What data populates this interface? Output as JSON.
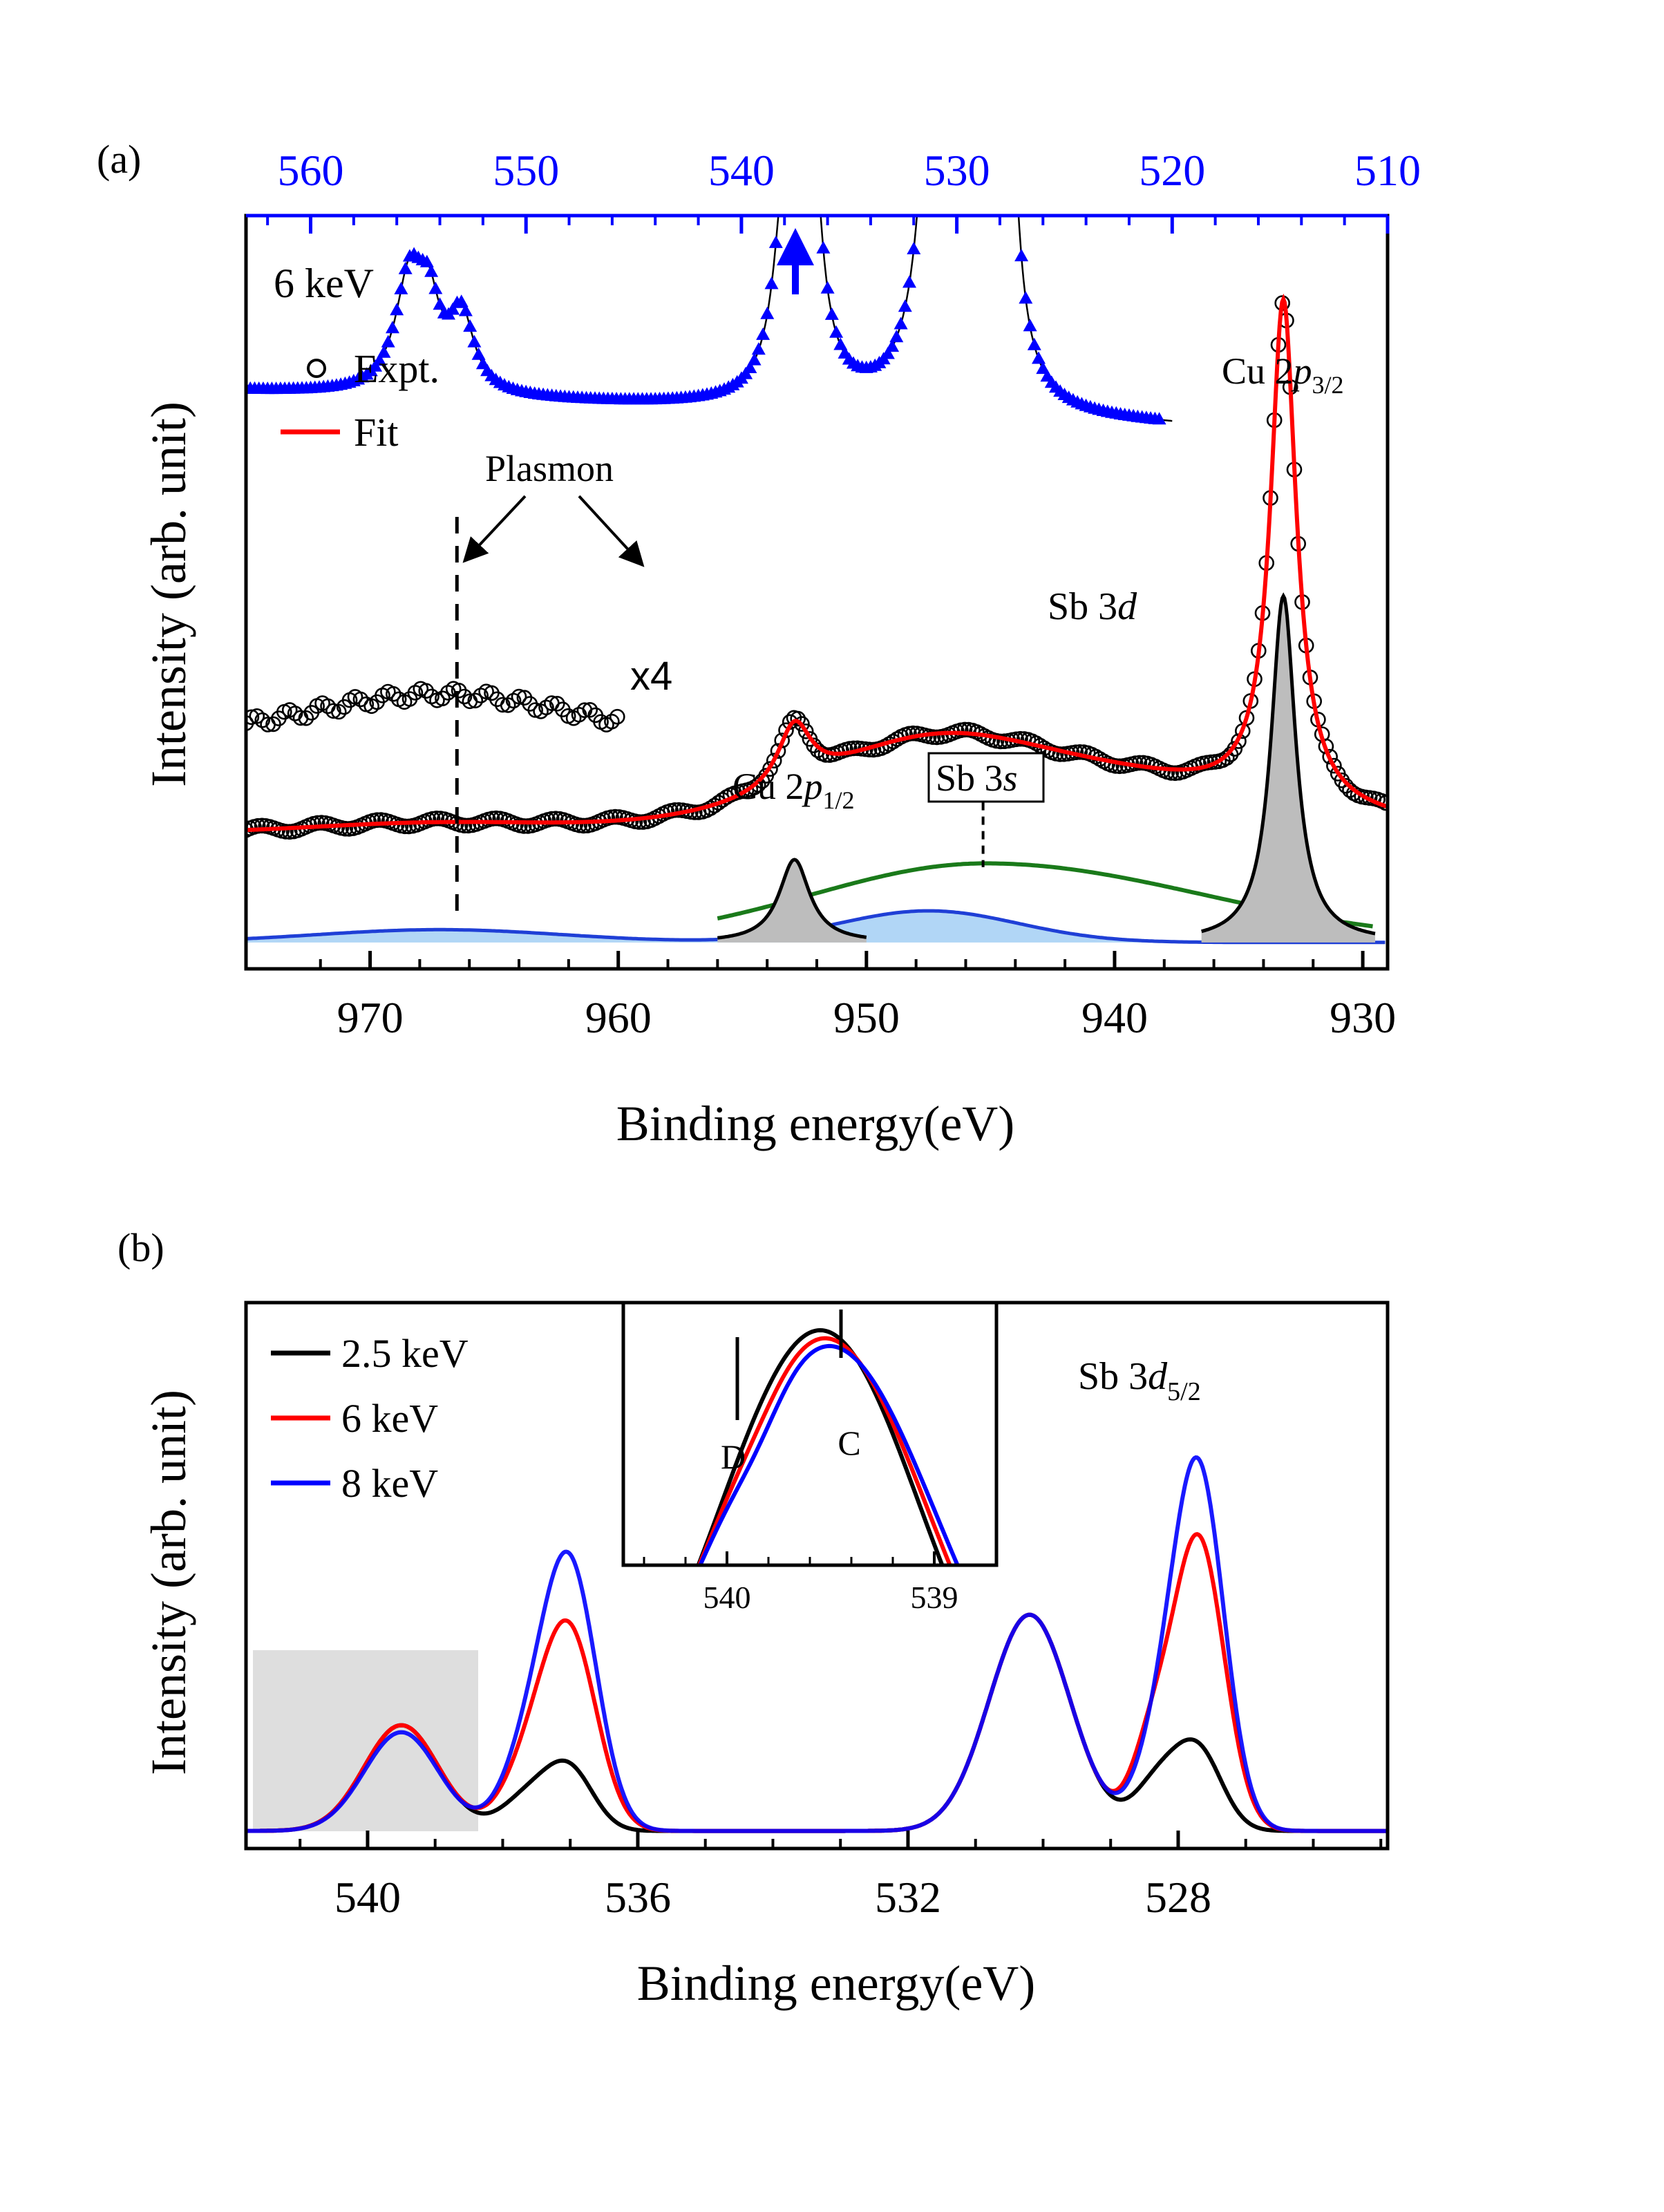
{
  "panel_labels": {
    "a": "(a)",
    "b": "(b)"
  },
  "colors": {
    "expt": "#000000",
    "fit": "#ff0000",
    "sb3d": "#0000ff",
    "sb3s": "#1a7a1a",
    "plasmon": "#1f3fd6",
    "plasmon_fill": "#a9d2f5",
    "cu_fill": "#bdbdbd",
    "e25": "#000000",
    "e6": "#ff0000",
    "e8": "#0000ff",
    "shade": "#dedede"
  },
  "chart_data": [
    {
      "id": "a",
      "type": "line",
      "title": "6 keV",
      "xlabel": "Binding energy(eV)",
      "ylabel": "Intensity (arb. unit)",
      "xlim": [
        975,
        929
      ],
      "x_ticks": [
        970,
        960,
        950,
        940,
        930
      ],
      "x_tick_labels": [
        "970",
        "960",
        "950",
        "940",
        "930"
      ],
      "top_xlim": [
        563,
        510
      ],
      "top_x_ticks": [
        560,
        550,
        540,
        530,
        520,
        510
      ],
      "top_x_tick_labels": [
        "560",
        "550",
        "540",
        "530",
        "520",
        "510"
      ],
      "ylim": [
        0,
        10
      ],
      "legend": [
        {
          "label": "Expt.",
          "marker": "circle"
        },
        {
          "label": "Fit",
          "marker": "line"
        }
      ],
      "annotations": {
        "plasmon": "Plasmon",
        "x4": "x4",
        "cu2p32": {
          "base": "Cu 2",
          "ital": "p",
          "sub": "3/2"
        },
        "cu2p12": {
          "base": "Cu 2",
          "ital": "p",
          "sub": "1/2"
        },
        "sb3s": {
          "base": "Sb 3",
          "ital": "s"
        },
        "sb3d": {
          "base": "Sb 3",
          "ital": "d"
        }
      },
      "series": {
        "sb3d_spectrum": {
          "name": "Sb 3d (top axis)",
          "baseline": 7.2,
          "slope": 0.018,
          "peaks": [
            [
              555.4,
              1.5,
              0.8
            ],
            [
              554.5,
              0.9,
              0.6
            ],
            [
              537.0,
              5.7,
              0.55
            ],
            [
              531.0,
              5.0,
              0.7
            ],
            [
              530.4,
              3.6,
              0.5
            ],
            [
              528.6,
              3.0,
              0.6
            ],
            [
              527.8,
              6.5,
              0.45
            ],
            [
              553.0,
              1.0,
              0.7
            ],
            [
              538.0,
              2.0,
              0.6
            ]
          ]
        },
        "cu2p_spectrum": {
          "name": "Cu 2p Expt./Fit",
          "baseline": 1.8,
          "x4_offset": 1.5,
          "x4_range": [
            975,
            960
          ]
        },
        "cu2p32_peak": {
          "center": 933.2,
          "amplitude": 4.6,
          "width": 0.6
        },
        "cu2p12_peak": {
          "center": 952.9,
          "amplitude": 1.1,
          "width": 0.75
        },
        "sb3s_peak": {
          "center": 945.2,
          "amplitude": 1.05,
          "width": 7.0
        },
        "plasmon_peaks": [
          {
            "center": 967.2,
            "amplitude": 0.17,
            "width": 5.0
          },
          {
            "center": 947.5,
            "amplitude": 0.42,
            "width": 3.6
          }
        ]
      }
    },
    {
      "id": "b",
      "type": "line",
      "title": "",
      "xlabel": "Binding energy(eV)",
      "ylabel": "Intensity (arb. unit)",
      "xlim": [
        541.8,
        524.9
      ],
      "x_ticks": [
        540,
        536,
        532,
        528
      ],
      "x_tick_labels": [
        "540",
        "536",
        "532",
        "528"
      ],
      "ylim": [
        0,
        10
      ],
      "annotation": {
        "base": "Sb 3",
        "ital": "d",
        "sub": "5/2"
      },
      "series": [
        {
          "name": "2.5 keV",
          "color": "#000000",
          "peaks": [
            [
              539.5,
              2.25,
              0.55
            ],
            [
              537.0,
              1.2,
              0.35
            ],
            [
              537.6,
              0.75,
              0.4
            ],
            [
              530.2,
              4.6,
              0.6
            ],
            [
              527.7,
              1.65,
              0.35
            ],
            [
              528.3,
              1.0,
              0.35
            ]
          ]
        },
        {
          "name": "6 keV",
          "color": "#ff0000",
          "peaks": [
            [
              539.5,
              2.25,
              0.55
            ],
            [
              537.0,
              4.0,
              0.4
            ],
            [
              537.6,
              1.3,
              0.4
            ],
            [
              530.2,
              4.6,
              0.6
            ],
            [
              527.7,
              6.2,
              0.38
            ],
            [
              528.4,
              1.6,
              0.3
            ]
          ]
        },
        {
          "name": "8 keV",
          "color": "#0000ff",
          "peaks": [
            [
              539.5,
              2.1,
              0.55
            ],
            [
              537.0,
              5.4,
              0.4
            ],
            [
              537.6,
              1.5,
              0.4
            ],
            [
              530.2,
              4.6,
              0.6
            ],
            [
              527.7,
              7.6,
              0.38
            ],
            [
              528.3,
              1.4,
              0.35
            ]
          ]
        }
      ],
      "inset": {
        "xlim": [
          540.5,
          538.7
        ],
        "x_ticks": [
          540,
          539
        ],
        "x_tick_labels": [
          "540",
          "539"
        ],
        "markers": [
          {
            "x": 539.95,
            "label": "D"
          },
          {
            "x": 539.45,
            "label": "C"
          }
        ]
      }
    }
  ]
}
